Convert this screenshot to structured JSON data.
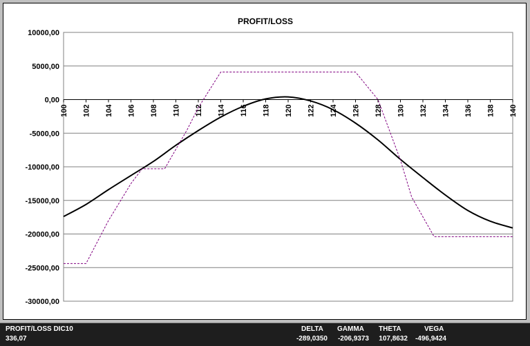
{
  "chart_data": {
    "type": "line",
    "title": "PROFIT/LOSS",
    "xlabel": "",
    "ylabel": "",
    "xlim": [
      100,
      140
    ],
    "ylim": [
      -30000,
      10000
    ],
    "x_ticks": [
      100,
      102,
      104,
      106,
      108,
      110,
      112,
      114,
      116,
      118,
      120,
      122,
      124,
      126,
      128,
      130,
      132,
      134,
      136,
      138,
      140
    ],
    "x_tick_labels": [
      "100",
      "102",
      "104",
      "106",
      "108",
      "110",
      "112",
      "114",
      "116",
      "118",
      "120",
      "122",
      "124",
      "126",
      "128",
      "130",
      "132",
      "134",
      "136",
      "138",
      "140"
    ],
    "y_ticks": [
      10000,
      5000,
      0,
      -5000,
      -10000,
      -15000,
      -20000,
      -25000,
      -30000
    ],
    "y_tick_labels": [
      "10000,00",
      "5000,00",
      "0,00",
      "-5000,00",
      "-10000,00",
      "-15000,00",
      "-20000,00",
      "-25000,00",
      "-30000,00"
    ],
    "grid": true,
    "legend": "none",
    "series": [
      {
        "style": "solid",
        "color": "#000000",
        "x": [
          100,
          102,
          104,
          106,
          108,
          110,
          112,
          114,
          116,
          118,
          120,
          122,
          124,
          126,
          128,
          130,
          132,
          134,
          136,
          138,
          140
        ],
        "y": [
          -17400,
          -15600,
          -13400,
          -11300,
          -9200,
          -6800,
          -4600,
          -2600,
          -1000,
          100,
          400,
          -200,
          -1500,
          -3500,
          -6000,
          -8900,
          -11600,
          -14200,
          -16500,
          -18100,
          -19100
        ]
      },
      {
        "style": "dashed",
        "color": "#800080",
        "x": [
          100,
          102,
          104,
          106,
          107,
          109,
          111,
          112,
          114,
          126,
          128,
          130,
          131,
          133,
          140
        ],
        "y": [
          -24400,
          -24400,
          -18000,
          -12500,
          -10300,
          -10300,
          -4500,
          -1200,
          4100,
          4100,
          0,
          -9000,
          -14500,
          -20400,
          -20400
        ]
      }
    ]
  },
  "status": {
    "title_label": "PROFIT/LOSS DIC10",
    "value": "336,07",
    "greeks": [
      {
        "label": "DELTA",
        "value": "-289,0350"
      },
      {
        "label": "GAMMA",
        "value": "-206,9373"
      },
      {
        "label": "THETA",
        "value": "107,8632"
      },
      {
        "label": "VEGA",
        "value": "-496,9424"
      }
    ]
  }
}
